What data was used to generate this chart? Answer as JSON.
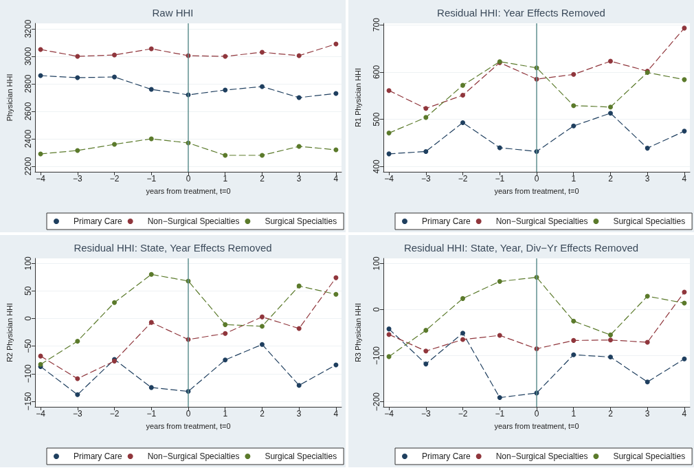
{
  "chart_data": [
    {
      "type": "line",
      "title": "Raw HHI",
      "xlabel": "years from treatment, t=0",
      "ylabel": "Physician HHI",
      "x": [
        -4,
        -3,
        -2,
        -1,
        0,
        1,
        2,
        3,
        4
      ],
      "series": [
        {
          "name": "Primary Care",
          "color": "#1f3f5f",
          "values": [
            2860,
            2845,
            2850,
            2760,
            2720,
            2755,
            2780,
            2700,
            2730
          ]
        },
        {
          "name": "Non−Surgical Specialties",
          "color": "#90363c",
          "values": [
            3050,
            3000,
            3010,
            3055,
            3005,
            3000,
            3030,
            3005,
            3090
          ]
        },
        {
          "name": "Surgical Specialties",
          "color": "#5b7a2b",
          "values": [
            2290,
            2315,
            2360,
            2400,
            2370,
            2280,
            2280,
            2345,
            2320
          ]
        }
      ],
      "xlim": [
        -4.15,
        4.15
      ],
      "xticks": [
        {
          "value": -4,
          "label": "−4"
        },
        {
          "value": -3,
          "label": "−3"
        },
        {
          "value": -2,
          "label": "−2"
        },
        {
          "value": -1,
          "label": "−1"
        },
        0,
        1,
        2,
        3,
        4
      ],
      "ylim": [
        2160,
        3240
      ],
      "yticks": [
        2200,
        2400,
        2600,
        2800,
        3000,
        3200
      ],
      "ref_lines": [
        {
          "axis": "x",
          "value": 0,
          "color": "#5f8f8f"
        }
      ],
      "grid": "y",
      "legend": "bottom",
      "marker": "circle",
      "line_style": "dashed"
    },
    {
      "type": "line",
      "title": "Residual HHI: Year Effects Removed",
      "xlabel": "years from treatment, t=0",
      "ylabel": "R1 Physician HHI",
      "x": [
        -4,
        -3,
        -2,
        -1,
        0,
        1,
        2,
        3,
        4
      ],
      "series": [
        {
          "name": "Primary Care",
          "color": "#1f3f5f",
          "values": [
            427,
            432,
            493,
            440,
            432,
            486,
            513,
            439,
            475
          ]
        },
        {
          "name": "Non−Surgical Specialties",
          "color": "#90363c",
          "values": [
            561,
            523,
            551,
            620,
            585,
            595,
            623,
            602,
            693
          ]
        },
        {
          "name": "Surgical Specialties",
          "color": "#5b7a2b",
          "values": [
            471,
            504,
            572,
            622,
            609,
            529,
            526,
            599,
            584
          ]
        }
      ],
      "xlim": [
        -4.15,
        4.15
      ],
      "xticks": [
        {
          "value": -4,
          "label": "−4"
        },
        {
          "value": -3,
          "label": "−3"
        },
        {
          "value": -2,
          "label": "−2"
        },
        {
          "value": -1,
          "label": "−1"
        },
        0,
        1,
        2,
        3,
        4
      ],
      "ylim": [
        389,
        703
      ],
      "yticks": [
        400,
        500,
        600,
        700
      ],
      "ref_lines": [
        {
          "axis": "x",
          "value": 0,
          "color": "#5f8f8f"
        }
      ],
      "grid": "y",
      "legend": "bottom",
      "marker": "circle",
      "line_style": "dashed"
    },
    {
      "type": "line",
      "title": "Residual HHI: State, Year Effects Removed",
      "xlabel": "years from treatment, t=0",
      "ylabel": "R2 Physician HHI",
      "x": [
        -4,
        -3,
        -2,
        -1,
        0,
        1,
        2,
        3,
        4
      ],
      "series": [
        {
          "name": "Primary Care",
          "color": "#1f3f5f",
          "values": [
            -87,
            -138,
            -74,
            -125,
            -132,
            -75,
            -47,
            -121,
            -84
          ]
        },
        {
          "name": "Non−Surgical Specialties",
          "color": "#90363c",
          "values": [
            -68,
            -109,
            -77,
            -7,
            -38,
            -27,
            3,
            -18,
            74
          ]
        },
        {
          "name": "Surgical Specialties",
          "color": "#5b7a2b",
          "values": [
            -83,
            -41,
            29,
            80,
            68,
            -11,
            -14,
            59,
            44
          ]
        }
      ],
      "xlim": [
        -4.15,
        4.15
      ],
      "xticks": [
        {
          "value": -4,
          "label": "−4"
        },
        {
          "value": -3,
          "label": "−3"
        },
        {
          "value": -2,
          "label": "−2"
        },
        {
          "value": -1,
          "label": "−1"
        },
        0,
        1,
        2,
        3,
        4
      ],
      "ylim": [
        -160,
        109
      ],
      "yticks": [
        {
          "value": -150,
          "label": "−150"
        },
        {
          "value": -100,
          "label": "−100"
        },
        {
          "value": -50,
          "label": "−50"
        },
        0,
        50,
        100
      ],
      "ref_lines": [
        {
          "axis": "x",
          "value": 0,
          "color": "#5f8f8f"
        }
      ],
      "grid": "y",
      "legend": "bottom",
      "marker": "circle",
      "line_style": "dashed"
    },
    {
      "type": "line",
      "title": "Residual HHI: State, Year, Div−Yr Effects Removed",
      "xlabel": "years from treatment, t=0",
      "ylabel": "R3 Physician HHI",
      "x": [
        -4,
        -3,
        -2,
        -1,
        0,
        1,
        2,
        3,
        4
      ],
      "series": [
        {
          "name": "Primary Care",
          "color": "#1f3f5f",
          "values": [
            -42,
            -118,
            -51,
            -191,
            -181,
            -98,
            -103,
            -157,
            -107
          ]
        },
        {
          "name": "Non−Surgical Specialties",
          "color": "#90363c",
          "values": [
            -54,
            -90,
            -65,
            -56,
            -85,
            -67,
            -66,
            -71,
            38
          ]
        },
        {
          "name": "Surgical Specialties",
          "color": "#5b7a2b",
          "values": [
            -102,
            -45,
            24,
            61,
            70,
            -25,
            -55,
            29,
            14
          ]
        }
      ],
      "xlim": [
        -4.15,
        4.15
      ],
      "xticks": [
        {
          "value": -4,
          "label": "−4"
        },
        {
          "value": -3,
          "label": "−3"
        },
        {
          "value": -2,
          "label": "−2"
        },
        {
          "value": -1,
          "label": "−1"
        },
        0,
        1,
        2,
        3,
        4
      ],
      "ylim": [
        -211,
        111
      ],
      "yticks": [
        {
          "value": -200,
          "label": "−200"
        },
        {
          "value": -100,
          "label": "−100"
        },
        0,
        100
      ],
      "ref_lines": [
        {
          "axis": "x",
          "value": 0,
          "color": "#5f8f8f"
        }
      ],
      "grid": "y",
      "legend": "bottom",
      "marker": "circle",
      "line_style": "dashed"
    }
  ]
}
